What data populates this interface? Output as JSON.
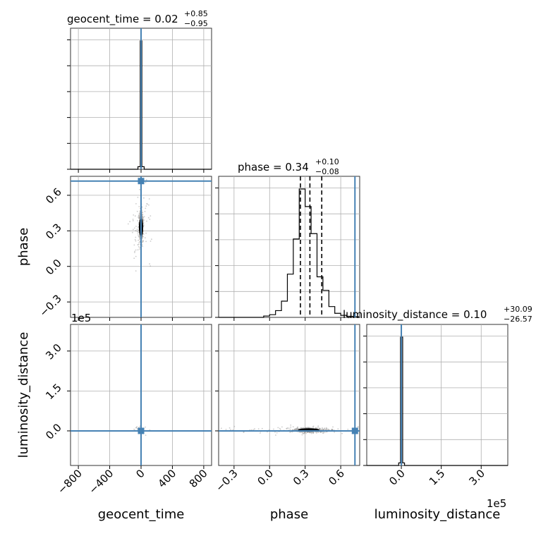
{
  "chart_data": {
    "type": "corner",
    "parameters": [
      "geocent_time",
      "phase",
      "luminosity_distance"
    ],
    "truth_color": "#4682b4",
    "truths": {
      "geocent_time": 0,
      "phase": 0.72,
      "luminosity_distance": 0
    },
    "scale_offset_text": "1e5",
    "titles": {
      "geocent_time": {
        "name": "geocent_time",
        "median": "0.02",
        "plus": "+0.85",
        "minus": "−0.95"
      },
      "phase": {
        "name": "phase",
        "median": "0.34",
        "plus": "+0.10",
        "minus": "−0.08"
      },
      "luminosity_distance": {
        "name": "luminosity_distance",
        "median": "0.10",
        "plus": "+30.09",
        "minus": "−26.57"
      }
    },
    "ticks": {
      "geocent_time": {
        "values": [
          -800,
          -400,
          0,
          400,
          800
        ],
        "labels": [
          "−800",
          "−400",
          "0",
          "400",
          "800"
        ],
        "range": [
          -900,
          900
        ]
      },
      "phase": {
        "values": [
          -0.3,
          0.0,
          0.3,
          0.6
        ],
        "labels": [
          "−0.3",
          "0.0",
          "0.3",
          "0.6"
        ],
        "range": [
          -0.43,
          0.76
        ]
      },
      "luminosity_distance": {
        "values": [
          0.0,
          1.5,
          3.0
        ],
        "labels": [
          "0.0",
          "1.5",
          "3.0"
        ],
        "range": [
          -1.3,
          4.0
        ]
      }
    },
    "hist_geocent_time": {
      "bin_edges": [
        -40,
        -10,
        10,
        40
      ],
      "counts": [
        0.02,
        1.0,
        0.02
      ],
      "quantiles": [
        0
      ]
    },
    "hist_phase": {
      "bin_edges": [
        -0.05,
        0.0,
        0.05,
        0.1,
        0.15,
        0.2,
        0.25,
        0.3,
        0.35,
        0.4,
        0.45,
        0.5,
        0.55,
        0.6,
        0.65,
        0.7,
        0.75
      ],
      "counts": [
        0.01,
        0.02,
        0.05,
        0.12,
        0.32,
        0.58,
        0.95,
        0.82,
        0.62,
        0.3,
        0.2,
        0.08,
        0.03,
        0.015,
        0.008,
        0.005
      ],
      "quantiles": [
        0.26,
        0.34,
        0.44
      ]
    },
    "hist_luminosity_distance": {
      "bin_edges": [
        -0.1,
        -0.03,
        0.05,
        0.12
      ],
      "counts": [
        0.02,
        1.0,
        0.02
      ],
      "quantiles": [
        0.0
      ]
    }
  }
}
